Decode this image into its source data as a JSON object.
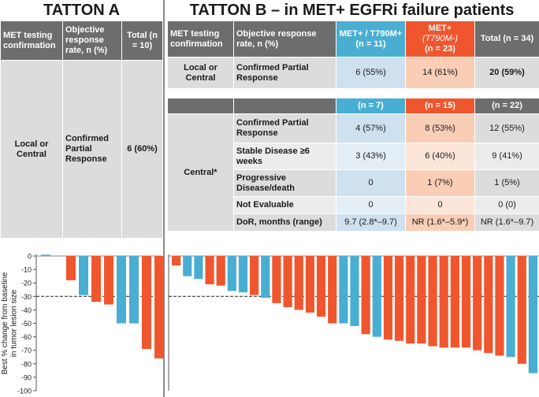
{
  "tatton_a": {
    "title": "TATTON A",
    "headers": {
      "met_testing": "MET testing confirmation",
      "orr": "Objective response rate, n (%)",
      "total": "Total (n = 10)"
    },
    "row": {
      "met_testing": "Local or Central",
      "response": "Confirmed Partial Response",
      "total": "6 (60%)"
    }
  },
  "tatton_b": {
    "title": "TATTON B – in MET+ EGFRi failure patients",
    "headers": {
      "met_testing": "MET testing confirmation",
      "orr": "Objective response rate, n (%)",
      "col_blue": "MET+ / T790M+ (n = 11)",
      "col_orange_line1": "MET+",
      "col_orange_line2": "(T790M-)",
      "col_orange_line3": "(n = 23)",
      "total": "Total (n = 34)"
    },
    "local_row": {
      "met_testing": "Local or Central",
      "response": "Confirmed Partial Response",
      "blue": "6 (55%)",
      "orange": "14 (61%)",
      "total": "20 (59%)"
    },
    "central_header": {
      "blue": "(n = 7)",
      "orange": "(n = 15)",
      "total": "(n = 22)"
    },
    "central_label": "Central*",
    "central_rows": [
      {
        "label": "Confirmed Partial Response",
        "blue": "4 (57%)",
        "orange": "8 (53%)",
        "total": "12 (55%)"
      },
      {
        "label": "Stable Disease ≥6 weeks",
        "blue": "3 (43%)",
        "orange": "6 (40%)",
        "total": "9 (41%)"
      },
      {
        "label": "Progressive Disease/death",
        "blue": "0",
        "orange": "1 (7%)",
        "total": "1 (5%)"
      },
      {
        "label": "Not Evaluable",
        "blue": "0",
        "orange": "0",
        "total": "0 (0)"
      },
      {
        "label": "DoR, months (range)",
        "blue": "9.7 (2.8*–9.7)",
        "orange": "NR (1.6*–5.9*)",
        "total": "NR (1.6*–9.7)"
      }
    ]
  },
  "colors": {
    "blue": "#4aaed2",
    "orange": "#f0562e",
    "header_gray": "#6d6d6d"
  },
  "chart_data": {
    "type": "bar",
    "ylabel": "Best % change from baseline in tumor lesion size",
    "ylim": [
      -100,
      0
    ],
    "yticks": [
      0,
      -10,
      -20,
      -30,
      -40,
      -50,
      -60,
      -70,
      -80,
      -90,
      -100
    ],
    "reference_line": -30,
    "legend": [
      {
        "name": "MET+ / T790M+",
        "color": "#4aaed2"
      },
      {
        "name": "MET+ (T790M-)",
        "color": "#f0562e"
      }
    ],
    "panels": [
      {
        "name": "TATTON A",
        "bars": [
          {
            "value": 1,
            "group": "blue"
          },
          {
            "value": 0,
            "group": "none"
          },
          {
            "value": -18,
            "group": "orange"
          },
          {
            "value": -29,
            "group": "blue"
          },
          {
            "value": -34,
            "group": "orange"
          },
          {
            "value": -36,
            "group": "orange"
          },
          {
            "value": -50,
            "group": "blue"
          },
          {
            "value": -50,
            "group": "blue"
          },
          {
            "value": -69,
            "group": "orange"
          },
          {
            "value": -76,
            "group": "orange"
          }
        ]
      },
      {
        "name": "TATTON B",
        "bars": [
          {
            "value": -7,
            "group": "orange"
          },
          {
            "value": -15,
            "group": "blue"
          },
          {
            "value": -17,
            "group": "blue"
          },
          {
            "value": -21,
            "group": "orange"
          },
          {
            "value": -22,
            "group": "orange"
          },
          {
            "value": -26,
            "group": "blue"
          },
          {
            "value": -27,
            "group": "blue"
          },
          {
            "value": -29,
            "group": "orange"
          },
          {
            "value": -31,
            "group": "blue"
          },
          {
            "value": -35,
            "group": "orange"
          },
          {
            "value": -38,
            "group": "orange"
          },
          {
            "value": -40,
            "group": "orange"
          },
          {
            "value": -42,
            "group": "orange"
          },
          {
            "value": -45,
            "group": "orange"
          },
          {
            "value": -50,
            "group": "orange"
          },
          {
            "value": -50,
            "group": "blue"
          },
          {
            "value": -52,
            "group": "blue"
          },
          {
            "value": -58,
            "group": "orange"
          },
          {
            "value": -60,
            "group": "blue"
          },
          {
            "value": -62,
            "group": "orange"
          },
          {
            "value": -63,
            "group": "orange"
          },
          {
            "value": -65,
            "group": "orange"
          },
          {
            "value": -65,
            "group": "orange"
          },
          {
            "value": -67,
            "group": "orange"
          },
          {
            "value": -68,
            "group": "orange"
          },
          {
            "value": -68,
            "group": "orange"
          },
          {
            "value": -68,
            "group": "orange"
          },
          {
            "value": -70,
            "group": "orange"
          },
          {
            "value": -72,
            "group": "orange"
          },
          {
            "value": -74,
            "group": "orange"
          },
          {
            "value": -75,
            "group": "blue"
          },
          {
            "value": -80,
            "group": "orange"
          },
          {
            "value": -87,
            "group": "blue"
          }
        ]
      }
    ]
  }
}
